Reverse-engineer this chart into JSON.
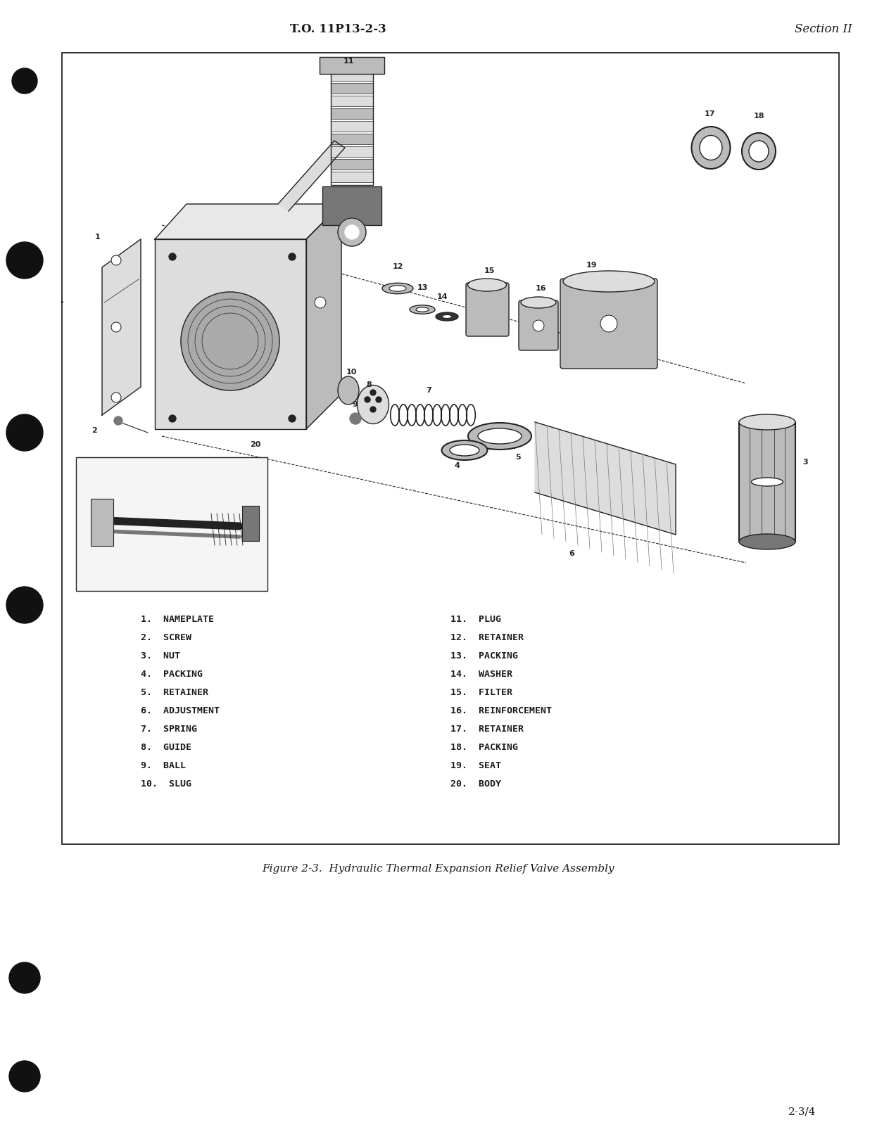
{
  "background_color": "#ffffff",
  "header_left": "T.O. 11P13-2-3",
  "header_right": "Section II",
  "header_fontsize": 12,
  "page_number": "2-3/4",
  "page_number_fontsize": 11,
  "figure_caption": "Figure 2-3.  Hydraulic Thermal Expansion Relief Valve Assembly",
  "figure_caption_fontsize": 11,
  "parts_list_left": [
    "1.  NAMEPLATE",
    "2.  SCREW",
    "3.  NUT",
    "4.  PACKING",
    "5.  RETAINER",
    "6.  ADJUSTMENT",
    "7.  SPRING",
    "8.  GUIDE",
    "9.  BALL",
    "10.  SLUG"
  ],
  "parts_list_right": [
    "11.  PLUG",
    "12.  RETAINER",
    "13.  PACKING",
    "14.  WASHER",
    "15.  FILTER",
    "16.  REINFORCEMENT",
    "17.  RETAINER",
    "18.  PACKING",
    "19.  SEAT",
    "20.  BODY"
  ],
  "parts_fontsize": 9.5,
  "text_color": "#1a1a1a",
  "box_color": "#111111"
}
